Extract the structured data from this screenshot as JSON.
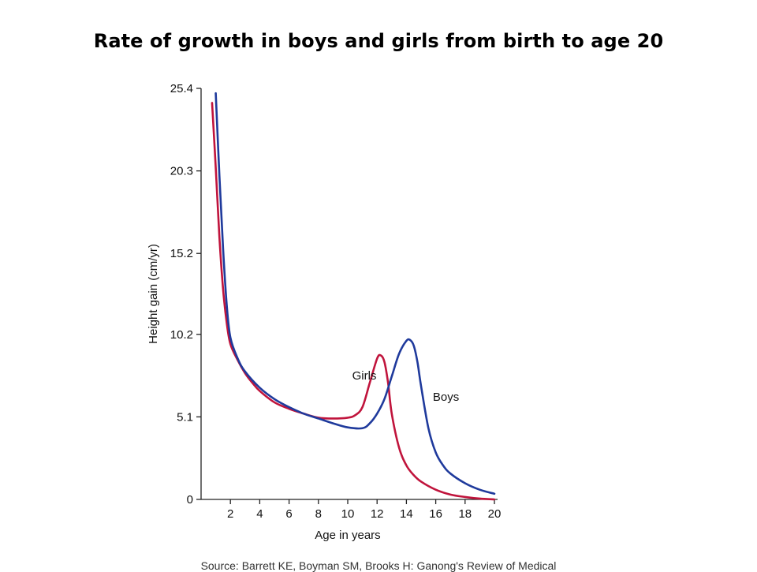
{
  "page": {
    "title": "Rate of growth in boys and girls from birth to age 20",
    "source_note": "Source: Barrett KE, Boyman SM, Brooks H: Ganong's Review of Medical"
  },
  "chart_data": {
    "type": "line",
    "title": "Rate of growth in boys and girls from birth to age 20",
    "xlabel": "Age in years",
    "ylabel": "Height gain (cm/yr)",
    "xlim": [
      0,
      20
    ],
    "ylim": [
      0,
      25.4
    ],
    "x_ticks": [
      2,
      4,
      6,
      8,
      10,
      12,
      14,
      16,
      18,
      20
    ],
    "y_ticks": [
      0,
      5.1,
      10.2,
      15.2,
      20.3,
      25.4
    ],
    "y_tick_labels": [
      "0",
      "5.1",
      "10.2",
      "15.2",
      "20.3",
      "25.4"
    ],
    "grid": false,
    "legend": "none (series labeled directly on curves)",
    "series": [
      {
        "name": "Girls",
        "color": "#c0143c",
        "points": [
          [
            0.75,
            24.5
          ],
          [
            1,
            20.5
          ],
          [
            1.25,
            16.2
          ],
          [
            1.5,
            13.0
          ],
          [
            1.75,
            10.9
          ],
          [
            2,
            9.6
          ],
          [
            2.5,
            8.6
          ],
          [
            3,
            7.8
          ],
          [
            3.5,
            7.2
          ],
          [
            4,
            6.7
          ],
          [
            5,
            6.0
          ],
          [
            6,
            5.6
          ],
          [
            7,
            5.3
          ],
          [
            8,
            5.05
          ],
          [
            9,
            5.0
          ],
          [
            10,
            5.05
          ],
          [
            10.5,
            5.2
          ],
          [
            11,
            5.7
          ],
          [
            11.5,
            7.2
          ],
          [
            12,
            8.7
          ],
          [
            12.25,
            8.9
          ],
          [
            12.5,
            8.5
          ],
          [
            12.75,
            7.2
          ],
          [
            13,
            5.3
          ],
          [
            13.5,
            3.2
          ],
          [
            14,
            2.1
          ],
          [
            14.5,
            1.5
          ],
          [
            15,
            1.1
          ],
          [
            16,
            0.6
          ],
          [
            17,
            0.3
          ],
          [
            18,
            0.15
          ],
          [
            19,
            0.05
          ],
          [
            20,
            0.0
          ]
        ]
      },
      {
        "name": "Boys",
        "color": "#1f3a9c",
        "points": [
          [
            1,
            25.1
          ],
          [
            1.25,
            20.0
          ],
          [
            1.5,
            15.5
          ],
          [
            1.75,
            12.0
          ],
          [
            2,
            10.0
          ],
          [
            2.5,
            8.7
          ],
          [
            3,
            7.9
          ],
          [
            4,
            6.9
          ],
          [
            5,
            6.2
          ],
          [
            6,
            5.7
          ],
          [
            7,
            5.3
          ],
          [
            8,
            5.0
          ],
          [
            9,
            4.7
          ],
          [
            10,
            4.45
          ],
          [
            11,
            4.4
          ],
          [
            11.5,
            4.7
          ],
          [
            12,
            5.3
          ],
          [
            12.5,
            6.2
          ],
          [
            13,
            7.6
          ],
          [
            13.5,
            9.0
          ],
          [
            14,
            9.8
          ],
          [
            14.25,
            9.85
          ],
          [
            14.5,
            9.5
          ],
          [
            14.75,
            8.5
          ],
          [
            15,
            7.0
          ],
          [
            15.5,
            4.4
          ],
          [
            16,
            2.9
          ],
          [
            16.5,
            2.1
          ],
          [
            17,
            1.6
          ],
          [
            18,
            1.0
          ],
          [
            19,
            0.6
          ],
          [
            20,
            0.35
          ]
        ]
      }
    ]
  }
}
